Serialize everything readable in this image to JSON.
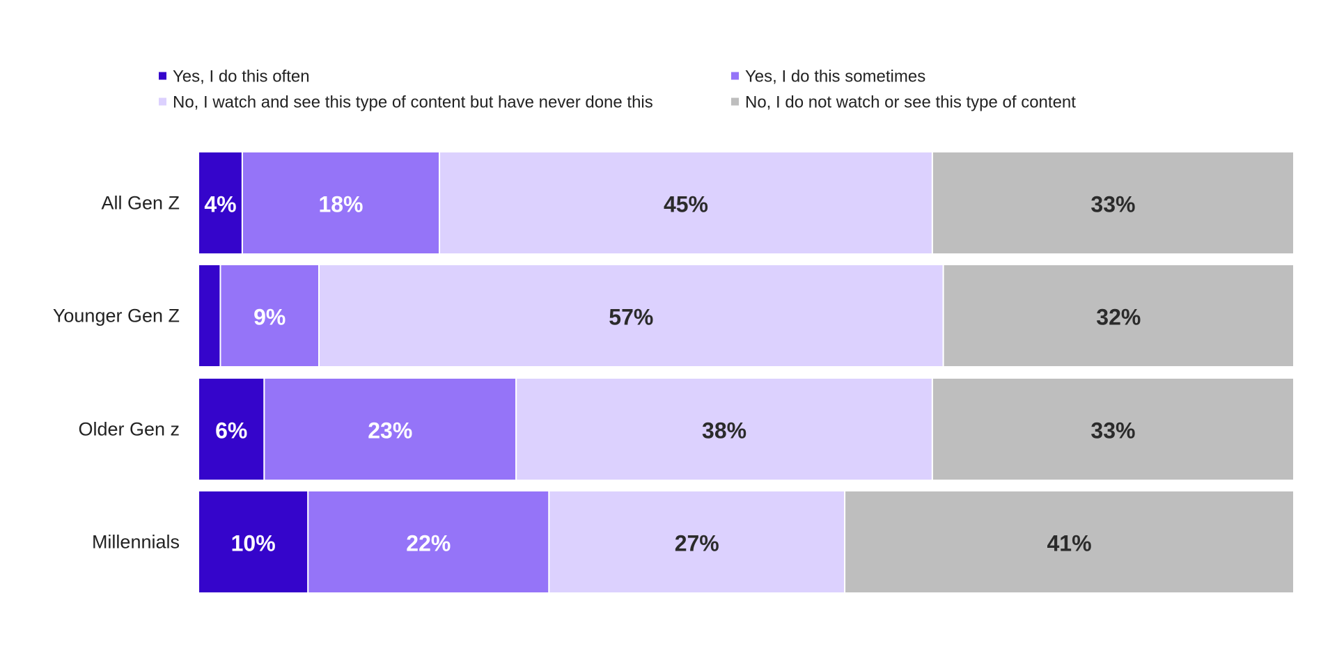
{
  "chart_data": {
    "type": "bar",
    "orientation": "horizontal",
    "stacked": true,
    "categories": [
      "All Gen Z",
      "Younger Gen Z",
      "Older Gen z",
      "Millennials"
    ],
    "series": [
      {
        "name": "Yes, I do this often",
        "color": "#3505CB",
        "label_color": "#ffffff",
        "values": [
          4,
          2,
          6,
          10
        ],
        "labels": [
          "4%",
          "",
          "6%",
          "10%"
        ]
      },
      {
        "name": "Yes, I do this sometimes",
        "color": "#9574F8",
        "label_color": "#ffffff",
        "values": [
          18,
          9,
          23,
          22
        ],
        "labels": [
          "18%",
          "9%",
          "23%",
          "22%"
        ]
      },
      {
        "name": "No, I watch and see this type of content but have never done this",
        "color": "#DCD1FE",
        "label_color": "#2B2B2B",
        "values": [
          45,
          57,
          38,
          27
        ],
        "labels": [
          "45%",
          "57%",
          "38%",
          "27%"
        ]
      },
      {
        "name": "No, I do not watch or see this type of content",
        "color": "#BEBEBE",
        "label_color": "#2B2B2B",
        "values": [
          33,
          32,
          33,
          41
        ],
        "labels": [
          "33%",
          "32%",
          "33%",
          "41%"
        ]
      }
    ],
    "xlim": [
      0,
      100
    ],
    "grid": false,
    "legend_position": "top"
  }
}
